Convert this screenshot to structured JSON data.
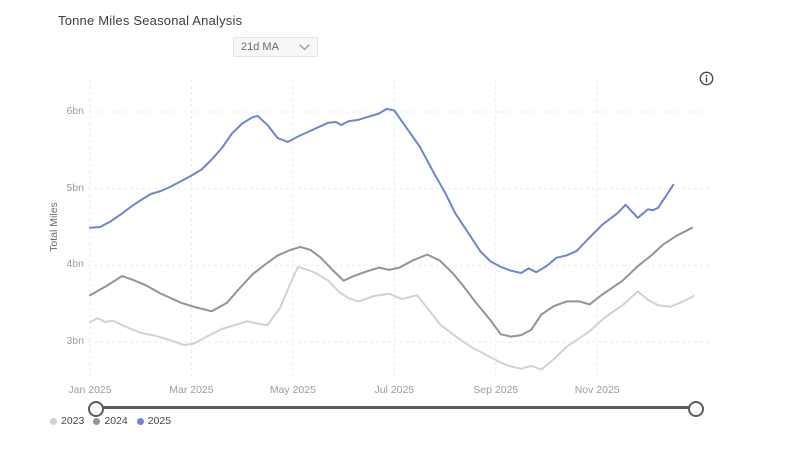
{
  "header": {
    "title": "Tonne Miles Seasonal Analysis"
  },
  "controls": {
    "ma_selector": {
      "value": "21d MA",
      "icon": "chevron-down-icon"
    },
    "info": {
      "icon": "info-icon"
    }
  },
  "colors": {
    "grid": "#ebebeb",
    "axis_text": "#9c9c9c",
    "title_text": "#3f3f3f",
    "slider": "#5c5c5c",
    "series_2023": "#d2d2d2",
    "series_2024": "#949494",
    "series_2025": "#6f85d1"
  },
  "chart_data": {
    "type": "line",
    "title": "Tonne Miles Seasonal Analysis",
    "xlabel": "",
    "ylabel": "Total Miles",
    "x_unit": "months since Jan 1 2025 (seasonal overlay)",
    "y_unit": "bn tonne miles",
    "xlim_months": [
      0,
      12
    ],
    "ylim": [
      2.5,
      6.5
    ],
    "grid": "dashed",
    "legend_position": "bottom-left",
    "x_ticks": [
      {
        "label": "Jan 2025",
        "month": 0
      },
      {
        "label": "Mar 2025",
        "month": 2
      },
      {
        "label": "May 2025",
        "month": 4
      },
      {
        "label": "Jul 2025",
        "month": 6
      },
      {
        "label": "Sep 2025",
        "month": 8
      },
      {
        "label": "Nov 2025",
        "month": 10
      }
    ],
    "y_ticks": [
      {
        "label": "6bn",
        "value": 6
      },
      {
        "label": "5bn",
        "value": 5
      },
      {
        "label": "4bn",
        "value": 4
      },
      {
        "label": "3bn",
        "value": 3
      }
    ],
    "series": [
      {
        "name": "2023",
        "color": "#d2d2d2",
        "points": [
          [
            0,
            3.26
          ],
          [
            0.15,
            3.31
          ],
          [
            0.3,
            3.26
          ],
          [
            0.45,
            3.28
          ],
          [
            0.7,
            3.2
          ],
          [
            1.0,
            3.12
          ],
          [
            1.3,
            3.08
          ],
          [
            1.6,
            3.02
          ],
          [
            1.85,
            2.96
          ],
          [
            2.05,
            2.98
          ],
          [
            2.3,
            3.07
          ],
          [
            2.6,
            3.17
          ],
          [
            2.85,
            3.22
          ],
          [
            3.1,
            3.27
          ],
          [
            3.3,
            3.24
          ],
          [
            3.5,
            3.22
          ],
          [
            3.75,
            3.45
          ],
          [
            3.95,
            3.76
          ],
          [
            4.1,
            3.98
          ],
          [
            4.25,
            3.95
          ],
          [
            4.45,
            3.9
          ],
          [
            4.7,
            3.8
          ],
          [
            4.9,
            3.66
          ],
          [
            5.1,
            3.57
          ],
          [
            5.3,
            3.53
          ],
          [
            5.6,
            3.6
          ],
          [
            5.9,
            3.63
          ],
          [
            6.15,
            3.56
          ],
          [
            6.45,
            3.61
          ],
          [
            6.7,
            3.4
          ],
          [
            6.9,
            3.23
          ],
          [
            7.2,
            3.08
          ],
          [
            7.5,
            2.94
          ],
          [
            7.9,
            2.8
          ],
          [
            8.1,
            2.73
          ],
          [
            8.3,
            2.68
          ],
          [
            8.5,
            2.65
          ],
          [
            8.7,
            2.69
          ],
          [
            8.9,
            2.64
          ],
          [
            9.15,
            2.78
          ],
          [
            9.4,
            2.94
          ],
          [
            9.65,
            3.05
          ],
          [
            9.85,
            3.14
          ],
          [
            10.15,
            3.32
          ],
          [
            10.5,
            3.48
          ],
          [
            10.8,
            3.66
          ],
          [
            11.0,
            3.55
          ],
          [
            11.2,
            3.48
          ],
          [
            11.45,
            3.46
          ],
          [
            11.7,
            3.53
          ],
          [
            11.9,
            3.6
          ]
        ]
      },
      {
        "name": "2024",
        "color": "#949494",
        "points": [
          [
            0,
            3.61
          ],
          [
            0.3,
            3.72
          ],
          [
            0.63,
            3.86
          ],
          [
            0.85,
            3.81
          ],
          [
            1.1,
            3.74
          ],
          [
            1.4,
            3.63
          ],
          [
            1.8,
            3.51
          ],
          [
            2.1,
            3.45
          ],
          [
            2.4,
            3.4
          ],
          [
            2.7,
            3.51
          ],
          [
            2.95,
            3.7
          ],
          [
            3.2,
            3.88
          ],
          [
            3.45,
            4.01
          ],
          [
            3.7,
            4.13
          ],
          [
            3.95,
            4.2
          ],
          [
            4.15,
            4.24
          ],
          [
            4.35,
            4.2
          ],
          [
            4.55,
            4.1
          ],
          [
            4.78,
            3.94
          ],
          [
            5.0,
            3.8
          ],
          [
            5.2,
            3.86
          ],
          [
            5.45,
            3.92
          ],
          [
            5.7,
            3.97
          ],
          [
            5.9,
            3.94
          ],
          [
            6.1,
            3.97
          ],
          [
            6.35,
            4.06
          ],
          [
            6.65,
            4.14
          ],
          [
            6.9,
            4.06
          ],
          [
            7.15,
            3.9
          ],
          [
            7.35,
            3.74
          ],
          [
            7.6,
            3.52
          ],
          [
            7.9,
            3.28
          ],
          [
            8.1,
            3.1
          ],
          [
            8.3,
            3.07
          ],
          [
            8.5,
            3.09
          ],
          [
            8.7,
            3.16
          ],
          [
            8.9,
            3.36
          ],
          [
            9.15,
            3.47
          ],
          [
            9.4,
            3.53
          ],
          [
            9.65,
            3.53
          ],
          [
            9.85,
            3.49
          ],
          [
            10.1,
            3.62
          ],
          [
            10.5,
            3.8
          ],
          [
            10.8,
            3.99
          ],
          [
            11.05,
            4.12
          ],
          [
            11.3,
            4.27
          ],
          [
            11.55,
            4.38
          ],
          [
            11.87,
            4.49
          ]
        ]
      },
      {
        "name": "2025",
        "color": "#6f85d1",
        "points": [
          [
            0,
            4.49
          ],
          [
            0.2,
            4.5
          ],
          [
            0.4,
            4.57
          ],
          [
            0.6,
            4.66
          ],
          [
            0.8,
            4.76
          ],
          [
            1.0,
            4.85
          ],
          [
            1.2,
            4.93
          ],
          [
            1.4,
            4.97
          ],
          [
            1.6,
            5.03
          ],
          [
            1.8,
            5.1
          ],
          [
            2.0,
            5.17
          ],
          [
            2.2,
            5.25
          ],
          [
            2.4,
            5.38
          ],
          [
            2.6,
            5.53
          ],
          [
            2.8,
            5.72
          ],
          [
            3.0,
            5.85
          ],
          [
            3.2,
            5.93
          ],
          [
            3.3,
            5.95
          ],
          [
            3.5,
            5.83
          ],
          [
            3.7,
            5.66
          ],
          [
            3.9,
            5.61
          ],
          [
            4.1,
            5.68
          ],
          [
            4.3,
            5.74
          ],
          [
            4.5,
            5.8
          ],
          [
            4.7,
            5.86
          ],
          [
            4.85,
            5.87
          ],
          [
            4.95,
            5.83
          ],
          [
            5.1,
            5.88
          ],
          [
            5.3,
            5.9
          ],
          [
            5.5,
            5.94
          ],
          [
            5.7,
            5.98
          ],
          [
            5.85,
            6.04
          ],
          [
            6.0,
            6.02
          ],
          [
            6.2,
            5.83
          ],
          [
            6.5,
            5.55
          ],
          [
            6.8,
            5.18
          ],
          [
            7.0,
            4.95
          ],
          [
            7.2,
            4.68
          ],
          [
            7.5,
            4.38
          ],
          [
            7.7,
            4.18
          ],
          [
            7.9,
            4.05
          ],
          [
            8.1,
            3.98
          ],
          [
            8.3,
            3.93
          ],
          [
            8.5,
            3.9
          ],
          [
            8.65,
            3.96
          ],
          [
            8.8,
            3.91
          ],
          [
            9.0,
            3.99
          ],
          [
            9.2,
            4.1
          ],
          [
            9.4,
            4.13
          ],
          [
            9.6,
            4.19
          ],
          [
            9.8,
            4.33
          ],
          [
            10.1,
            4.53
          ],
          [
            10.4,
            4.68
          ],
          [
            10.56,
            4.79
          ],
          [
            10.8,
            4.62
          ],
          [
            11.0,
            4.73
          ],
          [
            11.1,
            4.72
          ],
          [
            11.2,
            4.75
          ],
          [
            11.35,
            4.9
          ],
          [
            11.5,
            5.05
          ]
        ]
      }
    ]
  }
}
